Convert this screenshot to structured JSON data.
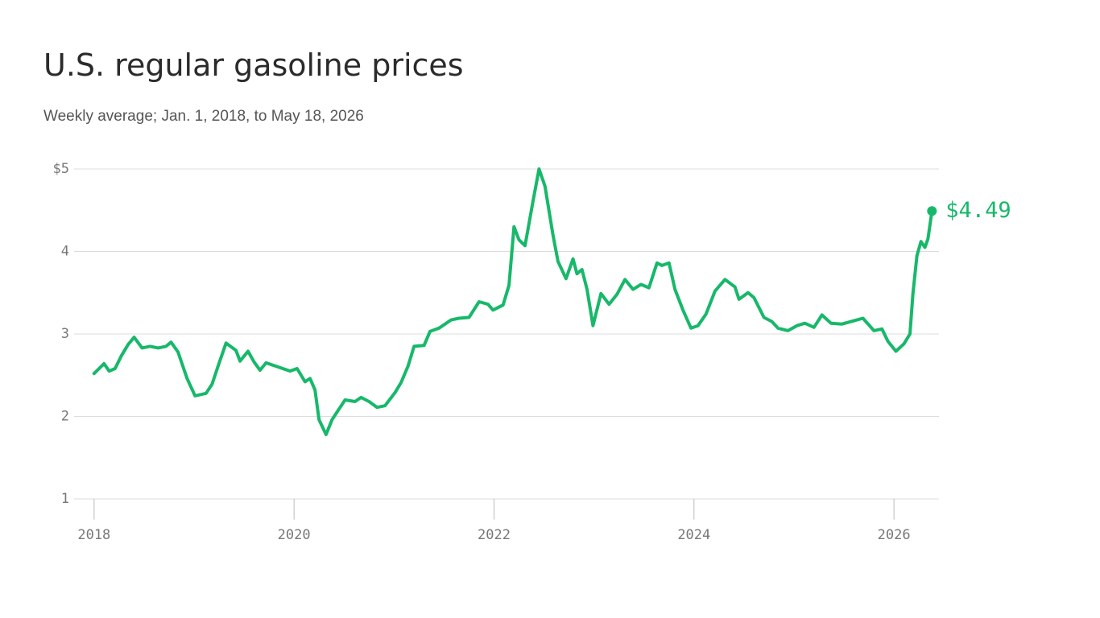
{
  "chart_data": {
    "type": "line",
    "title": "U.S. regular gasoline prices",
    "subtitle": "Weekly average; Jan. 1, 2018, to May 18, 2026",
    "color": "#17b86a",
    "xlim": [
      2017.8,
      2026.45
    ],
    "ylim": [
      0.75,
      5
    ],
    "xticks": [
      2018,
      2020,
      2022,
      2024,
      2026
    ],
    "yticks": [
      1,
      2,
      3,
      4,
      {
        "value": 5,
        "label": "$5"
      }
    ],
    "grid": true,
    "end_label": {
      "value": 4.49,
      "label": "$4.49"
    },
    "x": [
      2018.0,
      2018.1,
      2018.15,
      2018.21,
      2018.27,
      2018.34,
      2018.4,
      2018.48,
      2018.56,
      2018.64,
      2018.72,
      2018.77,
      2018.84,
      2018.93,
      2019.01,
      2019.12,
      2019.18,
      2019.24,
      2019.32,
      2019.42,
      2019.46,
      2019.54,
      2019.6,
      2019.66,
      2019.72,
      2019.84,
      2019.96,
      2020.03,
      2020.11,
      2020.16,
      2020.21,
      2020.25,
      2020.32,
      2020.38,
      2020.45,
      2020.51,
      2020.61,
      2020.67,
      2020.75,
      2020.83,
      2020.91,
      2021.01,
      2021.07,
      2021.14,
      2021.2,
      2021.3,
      2021.36,
      2021.45,
      2021.57,
      2021.65,
      2021.75,
      2021.85,
      2021.94,
      2021.99,
      2022.09,
      2022.15,
      2022.2,
      2022.25,
      2022.31,
      2022.39,
      2022.45,
      2022.51,
      2022.59,
      2022.64,
      2022.72,
      2022.79,
      2022.83,
      2022.88,
      2022.93,
      2022.99,
      2023.07,
      2023.15,
      2023.23,
      2023.31,
      2023.39,
      2023.47,
      2023.55,
      2023.63,
      2023.68,
      2023.75,
      2023.81,
      2023.89,
      2023.97,
      2024.04,
      2024.12,
      2024.21,
      2024.31,
      2024.41,
      2024.45,
      2024.54,
      2024.6,
      2024.7,
      2024.78,
      2024.84,
      2024.94,
      2025.03,
      2025.11,
      2025.2,
      2025.28,
      2025.37,
      2025.48,
      2025.6,
      2025.69,
      2025.8,
      2025.88,
      2025.94,
      2026.02,
      2026.1,
      2026.16,
      2026.19,
      2026.23,
      2026.27,
      2026.31,
      2026.34,
      2026.38
    ],
    "values": [
      2.52,
      2.64,
      2.55,
      2.58,
      2.73,
      2.87,
      2.96,
      2.83,
      2.85,
      2.83,
      2.85,
      2.9,
      2.78,
      2.46,
      2.25,
      2.28,
      2.39,
      2.61,
      2.89,
      2.8,
      2.67,
      2.79,
      2.66,
      2.56,
      2.65,
      2.6,
      2.55,
      2.58,
      2.42,
      2.46,
      2.32,
      1.96,
      1.78,
      1.96,
      2.09,
      2.2,
      2.18,
      2.23,
      2.18,
      2.11,
      2.13,
      2.29,
      2.41,
      2.61,
      2.85,
      2.86,
      3.03,
      3.07,
      3.17,
      3.19,
      3.2,
      3.39,
      3.36,
      3.29,
      3.35,
      3.59,
      4.3,
      4.14,
      4.07,
      4.61,
      5.0,
      4.79,
      4.2,
      3.88,
      3.67,
      3.91,
      3.73,
      3.78,
      3.54,
      3.1,
      3.49,
      3.36,
      3.48,
      3.66,
      3.54,
      3.6,
      3.56,
      3.86,
      3.83,
      3.86,
      3.54,
      3.29,
      3.07,
      3.1,
      3.24,
      3.52,
      3.66,
      3.57,
      3.42,
      3.5,
      3.44,
      3.2,
      3.15,
      3.07,
      3.04,
      3.1,
      3.13,
      3.08,
      3.23,
      3.13,
      3.12,
      3.16,
      3.19,
      3.04,
      3.06,
      2.91,
      2.79,
      2.88,
      3.0,
      3.49,
      3.95,
      4.12,
      4.05,
      4.15,
      4.49
    ]
  }
}
